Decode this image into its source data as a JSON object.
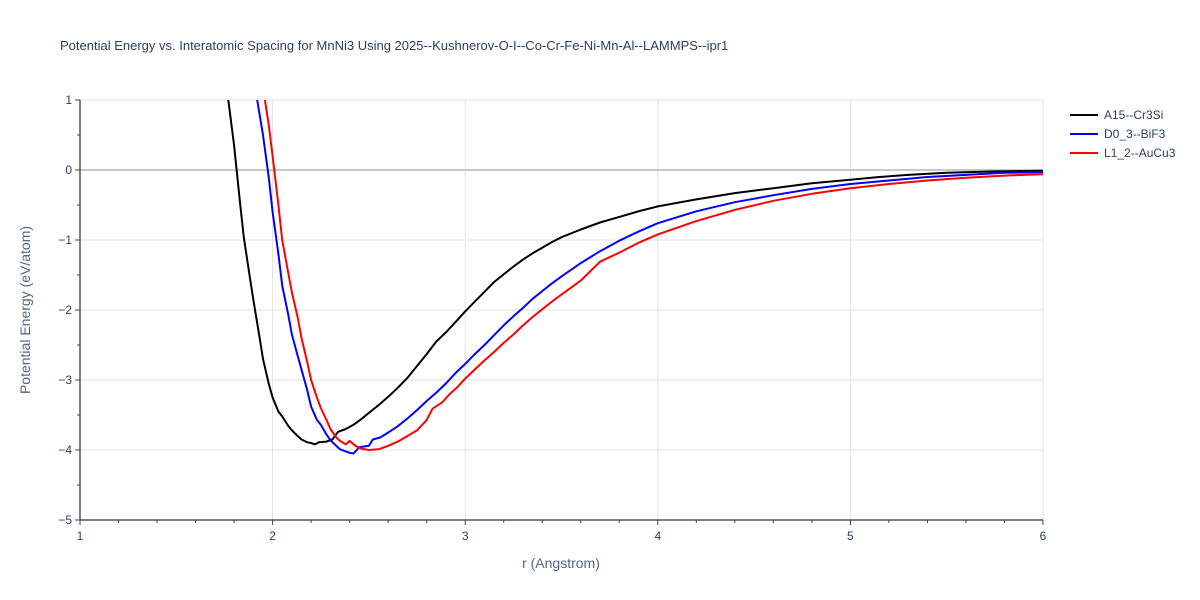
{
  "chart_data": {
    "type": "line",
    "title": "Potential Energy vs. Interatomic Spacing for MnNi3 Using 2025--Kushnerov-O-I--Co-Cr-Fe-Ni-Mn-Al--LAMMPS--ipr1",
    "xlabel": "r (Angstrom)",
    "ylabel": "Potential Energy (eV/atom)",
    "xlim": [
      1,
      6
    ],
    "ylim": [
      -5,
      1
    ],
    "xticks": [
      1,
      2,
      3,
      4,
      5,
      6
    ],
    "yticks": [
      1,
      0,
      -1,
      -2,
      -3,
      -4,
      -5
    ],
    "grid": true,
    "legend_position": "top-right",
    "series": [
      {
        "name": "A15--Cr3Si",
        "color": "#000000",
        "points": [
          [
            1.77,
            1.0
          ],
          [
            1.8,
            0.35
          ],
          [
            1.83,
            -0.45
          ],
          [
            1.85,
            -0.95
          ],
          [
            1.88,
            -1.5
          ],
          [
            1.9,
            -1.85
          ],
          [
            1.93,
            -2.35
          ],
          [
            1.95,
            -2.7
          ],
          [
            1.98,
            -3.05
          ],
          [
            2.0,
            -3.25
          ],
          [
            2.03,
            -3.45
          ],
          [
            2.05,
            -3.52
          ],
          [
            2.08,
            -3.65
          ],
          [
            2.1,
            -3.72
          ],
          [
            2.13,
            -3.8
          ],
          [
            2.15,
            -3.85
          ],
          [
            2.18,
            -3.89
          ],
          [
            2.2,
            -3.9
          ],
          [
            2.22,
            -3.92
          ],
          [
            2.24,
            -3.89
          ],
          [
            2.28,
            -3.88
          ],
          [
            2.31,
            -3.85
          ],
          [
            2.34,
            -3.74
          ],
          [
            2.38,
            -3.7
          ],
          [
            2.42,
            -3.64
          ],
          [
            2.46,
            -3.56
          ],
          [
            2.5,
            -3.47
          ],
          [
            2.55,
            -3.36
          ],
          [
            2.6,
            -3.24
          ],
          [
            2.65,
            -3.11
          ],
          [
            2.7,
            -2.97
          ],
          [
            2.75,
            -2.8
          ],
          [
            2.8,
            -2.63
          ],
          [
            2.85,
            -2.45
          ],
          [
            2.9,
            -2.32
          ],
          [
            2.95,
            -2.17
          ],
          [
            3.0,
            -2.02
          ],
          [
            3.05,
            -1.88
          ],
          [
            3.1,
            -1.74
          ],
          [
            3.15,
            -1.6
          ],
          [
            3.2,
            -1.49
          ],
          [
            3.25,
            -1.38
          ],
          [
            3.3,
            -1.28
          ],
          [
            3.35,
            -1.19
          ],
          [
            3.4,
            -1.11
          ],
          [
            3.45,
            -1.03
          ],
          [
            3.5,
            -0.96
          ],
          [
            3.6,
            -0.85
          ],
          [
            3.7,
            -0.75
          ],
          [
            3.8,
            -0.67
          ],
          [
            3.9,
            -0.59
          ],
          [
            4.0,
            -0.52
          ],
          [
            4.2,
            -0.42
          ],
          [
            4.4,
            -0.33
          ],
          [
            4.6,
            -0.26
          ],
          [
            4.8,
            -0.19
          ],
          [
            5.0,
            -0.14
          ],
          [
            5.15,
            -0.1
          ],
          [
            5.3,
            -0.07
          ],
          [
            5.5,
            -0.04
          ],
          [
            5.75,
            -0.02
          ],
          [
            6.0,
            -0.01
          ]
        ]
      },
      {
        "name": "D0_3--BiF3",
        "color": "#0000ff",
        "points": [
          [
            1.92,
            1.0
          ],
          [
            1.95,
            0.5
          ],
          [
            1.98,
            -0.1
          ],
          [
            2.0,
            -0.6
          ],
          [
            2.03,
            -1.2
          ],
          [
            2.05,
            -1.65
          ],
          [
            2.08,
            -2.05
          ],
          [
            2.1,
            -2.35
          ],
          [
            2.13,
            -2.65
          ],
          [
            2.15,
            -2.85
          ],
          [
            2.18,
            -3.15
          ],
          [
            2.2,
            -3.38
          ],
          [
            2.23,
            -3.57
          ],
          [
            2.25,
            -3.64
          ],
          [
            2.28,
            -3.78
          ],
          [
            2.3,
            -3.86
          ],
          [
            2.33,
            -3.94
          ],
          [
            2.35,
            -3.99
          ],
          [
            2.38,
            -4.02
          ],
          [
            2.4,
            -4.04
          ],
          [
            2.42,
            -4.05
          ],
          [
            2.45,
            -3.96
          ],
          [
            2.5,
            -3.94
          ],
          [
            2.52,
            -3.85
          ],
          [
            2.56,
            -3.82
          ],
          [
            2.6,
            -3.75
          ],
          [
            2.65,
            -3.66
          ],
          [
            2.7,
            -3.55
          ],
          [
            2.75,
            -3.43
          ],
          [
            2.8,
            -3.3
          ],
          [
            2.85,
            -3.18
          ],
          [
            2.9,
            -3.05
          ],
          [
            2.95,
            -2.9
          ],
          [
            3.0,
            -2.77
          ],
          [
            3.05,
            -2.63
          ],
          [
            3.1,
            -2.5
          ],
          [
            3.15,
            -2.36
          ],
          [
            3.2,
            -2.22
          ],
          [
            3.25,
            -2.09
          ],
          [
            3.3,
            -1.97
          ],
          [
            3.35,
            -1.84
          ],
          [
            3.4,
            -1.73
          ],
          [
            3.45,
            -1.62
          ],
          [
            3.5,
            -1.52
          ],
          [
            3.6,
            -1.33
          ],
          [
            3.7,
            -1.16
          ],
          [
            3.8,
            -1.01
          ],
          [
            3.9,
            -0.88
          ],
          [
            4.0,
            -0.76
          ],
          [
            4.2,
            -0.59
          ],
          [
            4.4,
            -0.46
          ],
          [
            4.6,
            -0.36
          ],
          [
            4.8,
            -0.27
          ],
          [
            5.0,
            -0.2
          ],
          [
            5.2,
            -0.15
          ],
          [
            5.4,
            -0.1
          ],
          [
            5.6,
            -0.07
          ],
          [
            5.8,
            -0.04
          ],
          [
            6.0,
            -0.03
          ]
        ]
      },
      {
        "name": "L1_2--AuCu3",
        "color": "#ff0000",
        "points": [
          [
            1.96,
            1.0
          ],
          [
            1.98,
            0.65
          ],
          [
            2.0,
            0.2
          ],
          [
            2.03,
            -0.5
          ],
          [
            2.05,
            -1.0
          ],
          [
            2.08,
            -1.45
          ],
          [
            2.1,
            -1.75
          ],
          [
            2.13,
            -2.1
          ],
          [
            2.15,
            -2.4
          ],
          [
            2.18,
            -2.75
          ],
          [
            2.2,
            -3.0
          ],
          [
            2.23,
            -3.25
          ],
          [
            2.25,
            -3.4
          ],
          [
            2.28,
            -3.57
          ],
          [
            2.3,
            -3.7
          ],
          [
            2.33,
            -3.82
          ],
          [
            2.35,
            -3.87
          ],
          [
            2.38,
            -3.92
          ],
          [
            2.4,
            -3.87
          ],
          [
            2.43,
            -3.94
          ],
          [
            2.46,
            -3.98
          ],
          [
            2.5,
            -4.0
          ],
          [
            2.55,
            -3.99
          ],
          [
            2.6,
            -3.94
          ],
          [
            2.65,
            -3.88
          ],
          [
            2.7,
            -3.8
          ],
          [
            2.75,
            -3.72
          ],
          [
            2.8,
            -3.57
          ],
          [
            2.83,
            -3.41
          ],
          [
            2.88,
            -3.32
          ],
          [
            2.92,
            -3.2
          ],
          [
            2.96,
            -3.1
          ],
          [
            3.0,
            -2.98
          ],
          [
            3.05,
            -2.85
          ],
          [
            3.1,
            -2.72
          ],
          [
            3.15,
            -2.6
          ],
          [
            3.2,
            -2.47
          ],
          [
            3.25,
            -2.35
          ],
          [
            3.3,
            -2.22
          ],
          [
            3.35,
            -2.1
          ],
          [
            3.4,
            -1.99
          ],
          [
            3.45,
            -1.88
          ],
          [
            3.5,
            -1.78
          ],
          [
            3.6,
            -1.58
          ],
          [
            3.7,
            -1.31
          ],
          [
            3.8,
            -1.18
          ],
          [
            3.9,
            -1.04
          ],
          [
            4.0,
            -0.92
          ],
          [
            4.2,
            -0.73
          ],
          [
            4.4,
            -0.57
          ],
          [
            4.6,
            -0.44
          ],
          [
            4.8,
            -0.34
          ],
          [
            5.0,
            -0.26
          ],
          [
            5.2,
            -0.2
          ],
          [
            5.4,
            -0.15
          ],
          [
            5.6,
            -0.11
          ],
          [
            5.8,
            -0.08
          ],
          [
            6.0,
            -0.06
          ]
        ]
      }
    ]
  }
}
